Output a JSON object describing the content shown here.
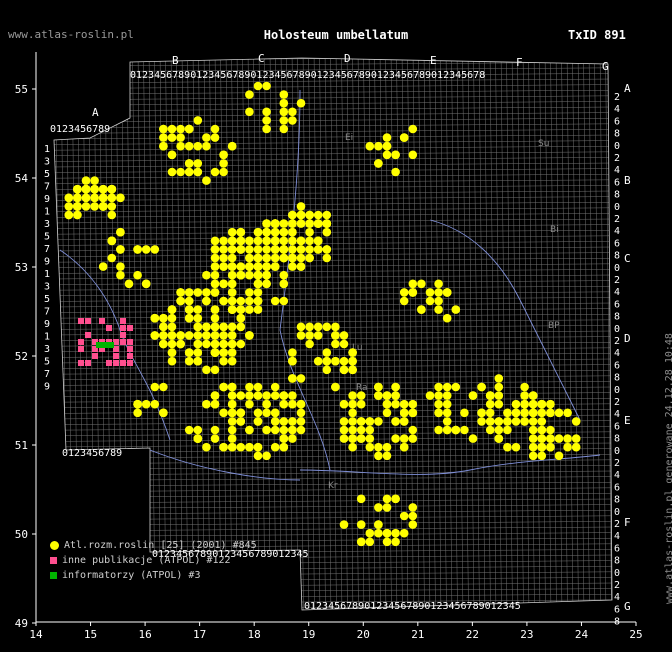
{
  "header": {
    "site": "www.atlas-roslin.pl",
    "title": "Holosteum umbellatum",
    "taxid": "TxID 891"
  },
  "side_text": "www.atlas-roslin.pl generowane 24.12.28 10:48",
  "colors": {
    "background": "#000000",
    "grid": "#d0d0d0",
    "rivers": "#7f8fd8",
    "atlas": "#ffff00",
    "publications": "#ff4f8f",
    "informants": "#00b400"
  },
  "axes": {
    "lon_ticks": [
      "14",
      "15",
      "16",
      "17",
      "18",
      "19",
      "20",
      "21",
      "22",
      "23",
      "24",
      "25"
    ],
    "lat_ticks": [
      "55",
      "54",
      "53",
      "52",
      "51",
      "50",
      "49"
    ]
  },
  "atpol": {
    "col_letters": [
      "A",
      "B",
      "C",
      "D",
      "E",
      "F",
      "G"
    ],
    "row_letters": [
      "A",
      "B",
      "C",
      "D",
      "E",
      "F",
      "G"
    ],
    "digits": "0123456789"
  },
  "region_labels": [
    "Ei",
    "Su",
    "Bi",
    "BP",
    "Lu",
    "Kr",
    "Ra"
  ],
  "legend": [
    {
      "label": "Atl.rozm.roslin [25] (2001) #845",
      "type": "atlas"
    },
    {
      "label": "inne publikacje (ATPOL) #122",
      "type": "publications"
    },
    {
      "label": "informatorzy (ATPOL) #3",
      "type": "informants"
    }
  ]
}
